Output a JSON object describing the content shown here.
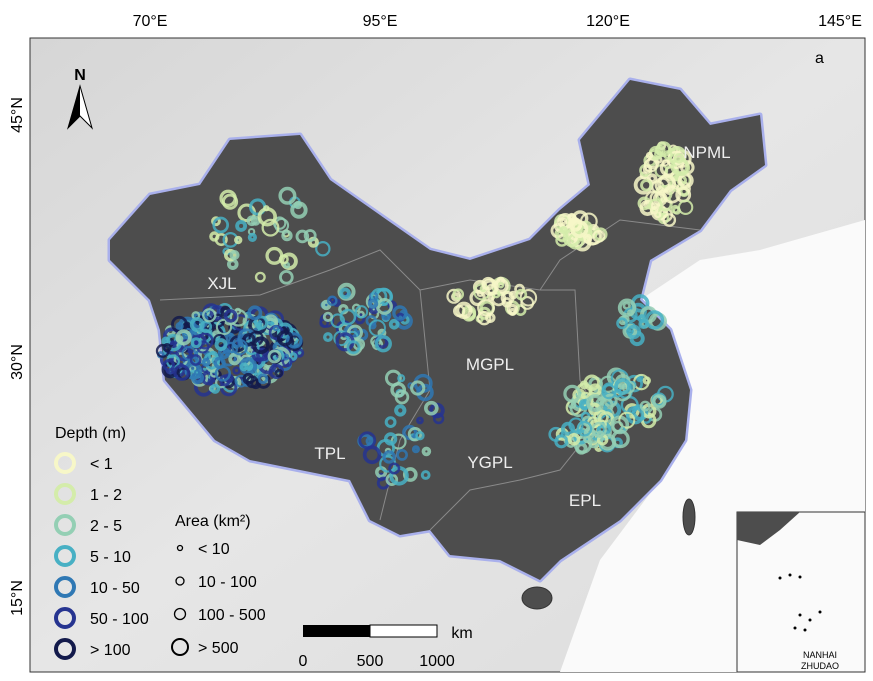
{
  "panel_label": "a",
  "north": "N",
  "lon_labels": [
    "70°E",
    "95°E",
    "120°E",
    "145°E"
  ],
  "lat_labels": [
    "45°N",
    "30°N",
    "15°N"
  ],
  "regions": [
    "XJL",
    "TPL",
    "MGPL",
    "YGPL",
    "EPL",
    "NPML"
  ],
  "depth_legend": {
    "title": "Depth (m)",
    "entries": [
      "< 1",
      "1 - 2",
      "2 - 5",
      "5 - 10",
      "10 - 50",
      "50 - 100",
      "> 100"
    ]
  },
  "area_legend": {
    "title": "Area (km²)",
    "entries": [
      "< 10",
      "10 - 100",
      "100 - 500",
      "> 500"
    ]
  },
  "scale_bar": {
    "unit": "km",
    "labels": [
      "0",
      "500",
      "1000"
    ]
  },
  "inset": {
    "label": "NANHAI ZHUDAO"
  }
}
